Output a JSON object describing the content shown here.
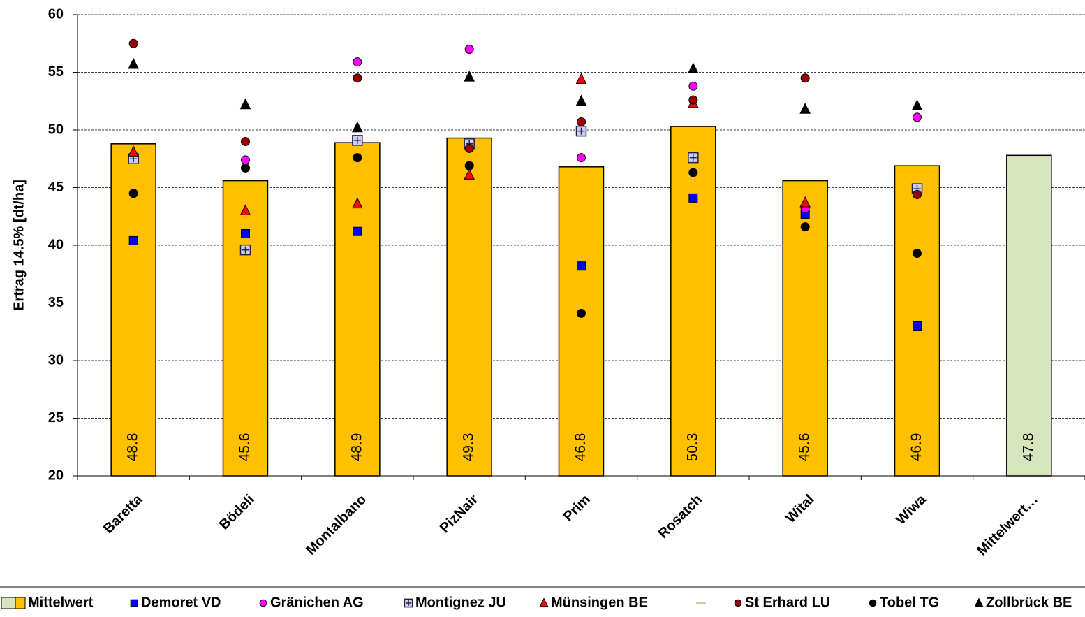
{
  "chart_data": {
    "type": "bar",
    "name": "Mittelwert",
    "ylabel": "Ertrag 14.5%  [dt/ha]",
    "categories": [
      "Baretta",
      "Bödeli",
      "Montalbano",
      "PizNair",
      "Prim",
      "Rosatch",
      "Wital",
      "Wiwa",
      "Mittelwert…"
    ],
    "values": [
      48.8,
      45.6,
      48.9,
      49.3,
      46.8,
      50.3,
      45.6,
      46.9,
      47.8
    ],
    "colors": [
      "#ffc000",
      "#ffc000",
      "#ffc000",
      "#ffc000",
      "#ffc000",
      "#ffc000",
      "#ffc000",
      "#ffc000",
      "#d7e4bd"
    ],
    "ylim": [
      20,
      60
    ],
    "yticks": [
      20,
      25,
      30,
      35,
      40,
      45,
      50,
      55,
      60
    ],
    "grid": true,
    "overlay": {
      "type": "scatter",
      "series": [
        {
          "name": "Demoret VD",
          "marker": "square",
          "color": "#0000ff",
          "values": [
            40.4,
            41.0,
            41.2,
            null,
            38.2,
            44.1,
            42.7,
            33.0,
            null
          ]
        },
        {
          "name": "Gränichen AG",
          "marker": "circle",
          "color": "#ff00ff",
          "values": [
            null,
            47.4,
            55.9,
            57.0,
            47.6,
            53.8,
            43.2,
            51.1,
            null
          ]
        },
        {
          "name": "Montignez JU",
          "marker": "plus",
          "color": "#ccccff",
          "values": [
            47.5,
            39.6,
            49.1,
            48.8,
            49.9,
            47.6,
            null,
            44.9,
            null
          ]
        },
        {
          "name": "Münsingen BE",
          "marker": "triangle",
          "color": "#ff0000",
          "values": [
            48.1,
            43.0,
            43.6,
            46.1,
            54.4,
            52.3,
            43.7,
            null,
            null
          ]
        },
        {
          "name": "St Erhard LU",
          "marker": "circle",
          "color": "#990000",
          "values": [
            57.5,
            49.0,
            54.5,
            48.4,
            50.7,
            52.6,
            54.5,
            44.4,
            null
          ]
        },
        {
          "name": "Tobel TG",
          "marker": "circle",
          "color": "#000000",
          "values": [
            44.5,
            46.7,
            47.6,
            46.9,
            34.1,
            46.3,
            41.6,
            39.3,
            null
          ]
        },
        {
          "name": "Zollbrück BE",
          "marker": "triangle",
          "color": "#000000",
          "values": [
            55.7,
            52.2,
            50.2,
            54.6,
            52.5,
            55.3,
            51.8,
            52.1,
            null
          ]
        }
      ]
    }
  }
}
